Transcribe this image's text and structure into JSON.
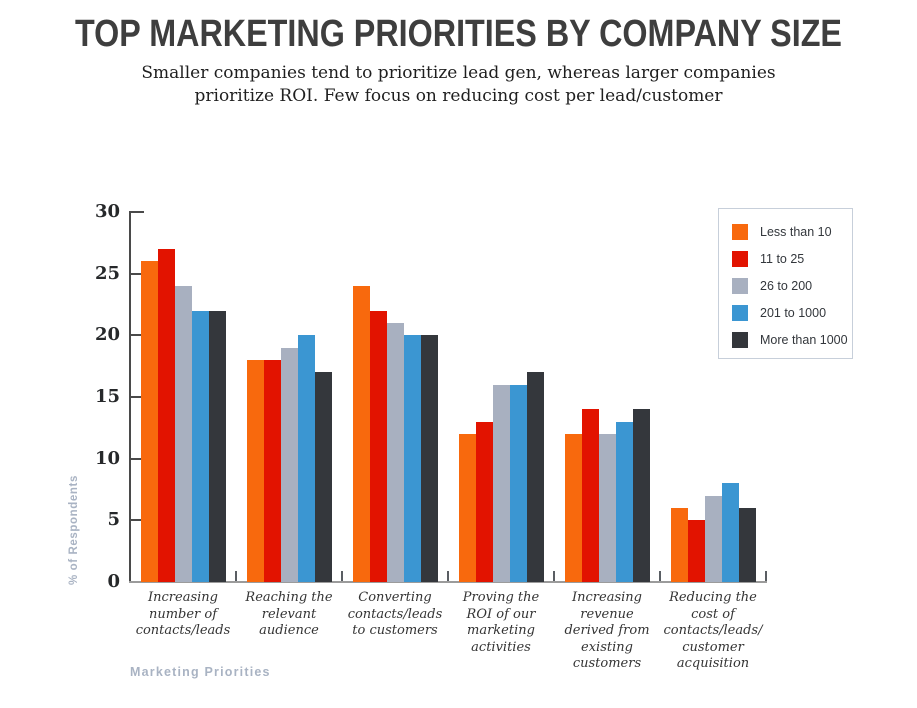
{
  "header": {
    "title": "TOP MARKETING PRIORITIES BY COMPANY SIZE",
    "subtitle_lines": [
      "Smaller companies tend to prioritize lead gen, whereas larger companies",
      "prioritize ROI. Few focus on reducing cost per lead/customer"
    ]
  },
  "chart_data": {
    "type": "bar",
    "title": "TOP MARKETING PRIORITIES BY COMPANY SIZE",
    "xlabel": "Marketing Priorities",
    "ylabel": "% of Respondents",
    "ylim": [
      0,
      30
    ],
    "yticks": [
      0,
      5,
      10,
      15,
      20,
      25,
      30
    ],
    "grid": false,
    "legend_position": "top-right",
    "categories": [
      "Increasing number of contacts/leads",
      "Reaching the relevant audience",
      "Converting contacts/leads to customers",
      "Proving the ROI of our marketing activities",
      "Increasing revenue derived from existing customers",
      "Reducing the cost of contacts/leads/customer acquisition"
    ],
    "series": [
      {
        "name": "Less than 10",
        "color": "#F8690D",
        "values": [
          26,
          18,
          24,
          12,
          12,
          6
        ]
      },
      {
        "name": "11 to 25",
        "color": "#E21300",
        "values": [
          27,
          18,
          22,
          13,
          14,
          5
        ]
      },
      {
        "name": "26 to 200",
        "color": "#A8B0C0",
        "values": [
          24,
          19,
          21,
          16,
          12,
          7
        ]
      },
      {
        "name": "201 to 1000",
        "color": "#3B96D2",
        "values": [
          22,
          20,
          20,
          16,
          13,
          8
        ]
      },
      {
        "name": "More than 1000",
        "color": "#34373C",
        "values": [
          22,
          17,
          20,
          17,
          14,
          6
        ]
      }
    ]
  },
  "colors": {
    "title_text": "#3E3E3E",
    "axis_line": "#4A4A4A",
    "baseline": "#9B9B9B",
    "tick_label": "#26282A",
    "category_label": "#343434",
    "axis_title": "#A9B3C3",
    "legend_border": "#C7CFDA"
  }
}
